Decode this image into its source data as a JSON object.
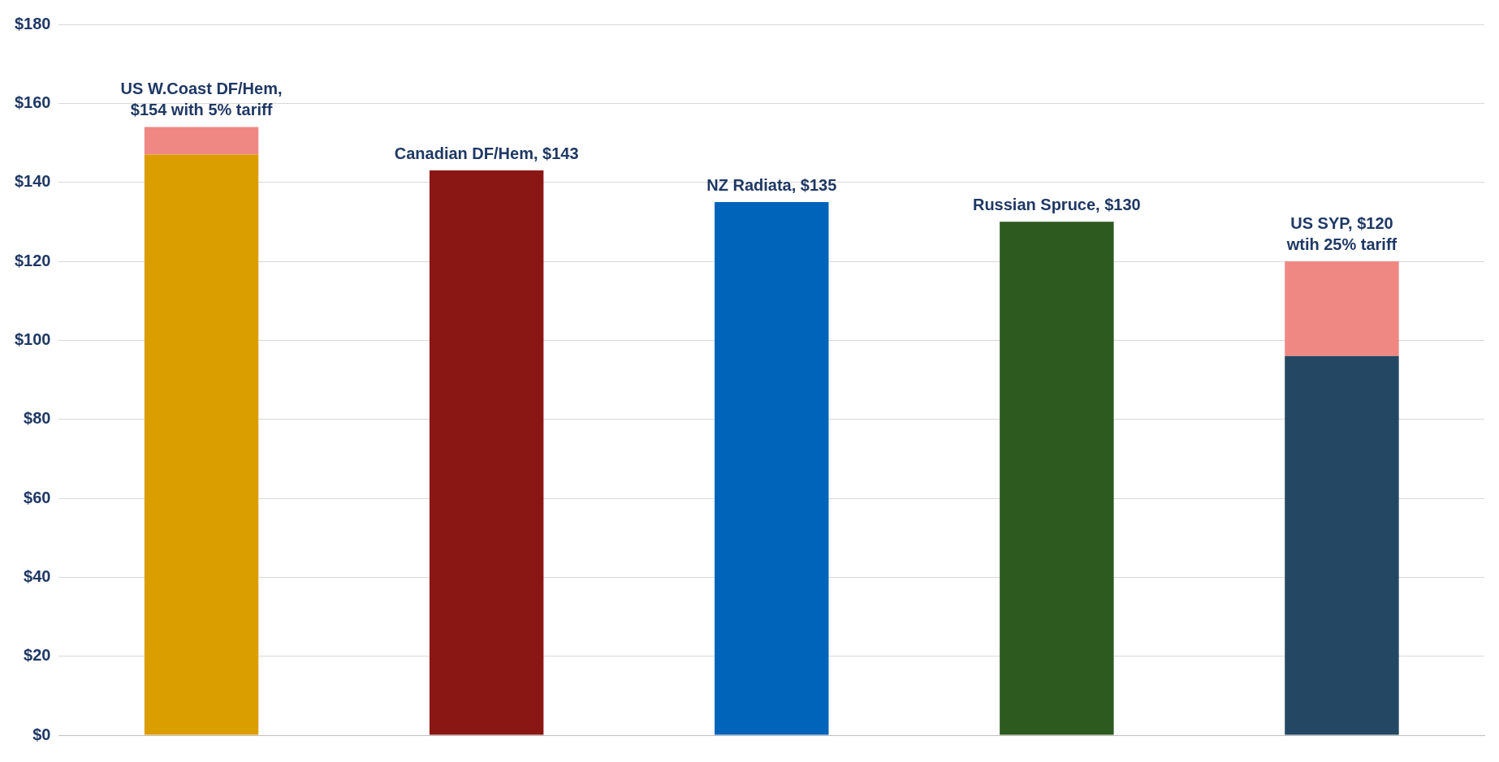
{
  "chart_data": {
    "type": "bar",
    "stacked": true,
    "categories": [
      null,
      null,
      null,
      null,
      null
    ],
    "series": [
      {
        "colors": [
          "#db9e00",
          "#8b1714",
          "#0064bb",
          "#2d5a1f",
          "#244863"
        ],
        "values": [
          147,
          143,
          135,
          130,
          96
        ]
      },
      {
        "color": "#ef8883",
        "values": [
          7,
          null,
          null,
          null,
          24
        ]
      }
    ],
    "ylim": [
      0,
      180
    ],
    "yticks": [
      {
        "value": 0,
        "label": "$0"
      },
      {
        "value": 20,
        "label": "$20"
      },
      {
        "value": 40,
        "label": "$40"
      },
      {
        "value": 60,
        "label": "$60"
      },
      {
        "value": 80,
        "label": "$80"
      },
      {
        "value": 100,
        "label": "$100"
      },
      {
        "value": 120,
        "label": "$120"
      },
      {
        "value": 140,
        "label": "$140"
      },
      {
        "value": 160,
        "label": "$160"
      },
      {
        "value": 180,
        "label": "$180"
      }
    ],
    "grid": "y",
    "legend": false,
    "tick_labels": "y",
    "annotations": [
      {
        "text": "US W.Coast DF/Hem,\n$154 with 5% tariff",
        "y": 154
      },
      {
        "text": "Canadian DF/Hem, $143",
        "y": 143
      },
      {
        "text": "NZ Radiata, $135",
        "y": 135
      },
      {
        "text": "Russian Spruce, $130",
        "y": 130
      },
      {
        "text": "US SYP, $120\nwtih 25% tariff",
        "y": 120
      }
    ]
  }
}
